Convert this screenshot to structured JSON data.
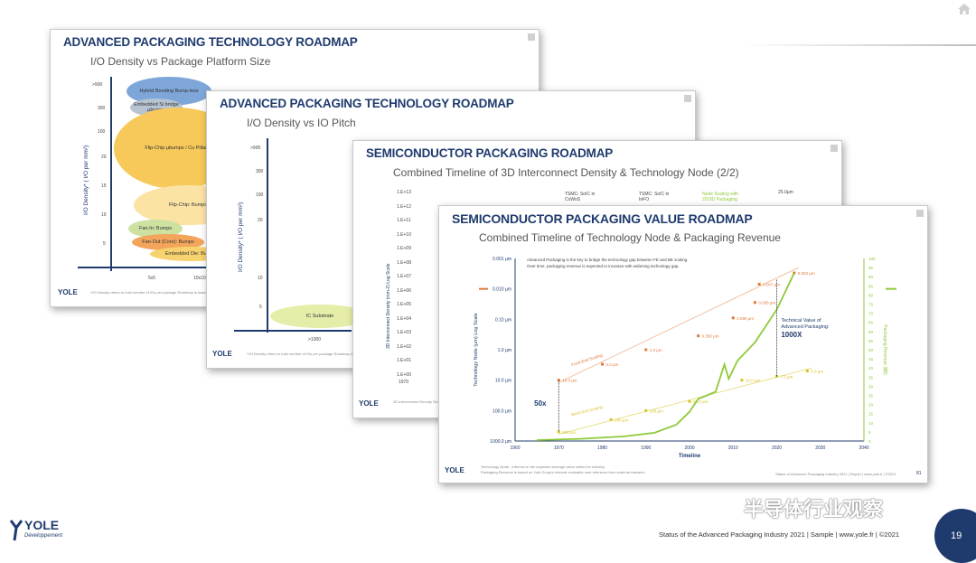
{
  "slide1": {
    "title": "ADVANCED PACKAGING TECHNOLOGY ROADMAP",
    "subtitle": "I/O Density vs Package Platform Size",
    "ylabel": "I/O Density* ( I/O per mm²)",
    "yticks": [
      ">900",
      "300",
      "100",
      "20",
      "15",
      "10",
      "5"
    ],
    "xticks": [
      "5x5",
      "10x10"
    ],
    "blobs": [
      "Hybrid Bonding Bump-less",
      "Embedded Si bridge µbumps",
      "Flip-Chip µbumps / Cu Pillars",
      "Flip-Chip: Bumps",
      "Fan-In: Bumps",
      "Fan-Out (Core): Bumps",
      "Embedded Die: Bumps"
    ],
    "footnote": "*I/O Density refers to total number of IOs per package Roadmap is based on industry average"
  },
  "slide2": {
    "title": "ADVANCED PACKAGING TECHNOLOGY ROADMAP",
    "subtitle": "I/O Density vs IO Pitch",
    "ylabel": "I/O Density* ( I/O per mm²)",
    "yticks": [
      ">900",
      "300",
      "100",
      "20",
      "10",
      "5"
    ],
    "xticks": [
      ">1000"
    ],
    "blobs": [
      "IC Substrate"
    ],
    "footnote": "*I/O Density refers to total number of IOs per package Roadmap is based on industry average"
  },
  "slide3": {
    "title": "SEMICONDUCTOR PACKAGING ROADMAP",
    "subtitle": "Combined Timeline of 3D Interconnect Density & Technology Node (2/2)",
    "ylabel": "3D Interconnect Density (mm-2) Log Scale",
    "yticks": [
      "1.E+13",
      "1.E+12",
      "1.E+11",
      "1.E+10",
      "1.E+09",
      "1.E+08",
      "1.E+07",
      "1.E+06",
      "1.E+05",
      "1.E+04",
      "1.E+03",
      "1.E+02",
      "1.E+01",
      "1.E+00"
    ],
    "x_first": "1970",
    "box1": "TSMC: SoIC in CoWoS",
    "box2": "TSMC: SoIC in InFO",
    "note": "Node Scaling with 2D/3D Packaging",
    "node": "25.0µm",
    "footnote": "3D Interconnect Density Technology Node Scaling"
  },
  "slide4": {
    "title": "SEMICONDUCTOR PACKAGING VALUE ROADMAP",
    "subtitle": "Combined Timeline of Technology Node & Packaging Revenue",
    "note_line1": "Advanced Packaging is the key to bridge the technology gap between FE and BE scaling.",
    "note_line2": "Over time, packaging revenue is expected to increase with widening technology gap.",
    "footnote_line1": "Technology Node - inferred on the expected average value within the industry",
    "footnote_line2": "Packaging Revenue is based on Yole Group's internal evaluation and reference from external research",
    "slide_ref": "Status of Advanced Packaging Industry 2021 | Report | www.yole.fr | ©2021",
    "slide_num": "81"
  },
  "chart_data": {
    "type": "line",
    "title": "Combined Timeline of Technology Node & Packaging Revenue",
    "xlabel": "Timeline",
    "ylabel": "Technology Node (µm) Log Scale",
    "y2label": "Packaging Revenue ($B)",
    "x_ticks": [
      "1960",
      "1970",
      "1980",
      "1990",
      "2000",
      "2010",
      "2020",
      "2030",
      "2040"
    ],
    "y_ticks": [
      "0.001 µm",
      "0.010 µm",
      "0.10 µm",
      "1.0 µm",
      "10.0 µm",
      "100.0 µm",
      "1000.0 µm"
    ],
    "y2_ticks": [
      "0",
      "5",
      "10",
      "15",
      "20",
      "25",
      "30",
      "35",
      "40",
      "45",
      "50",
      "55",
      "60",
      "65",
      "70",
      "75",
      "80",
      "85",
      "90",
      "95",
      "100"
    ],
    "xlim": [
      1960,
      2040
    ],
    "ylim_log": [
      0.001,
      1000
    ],
    "y2lim": [
      0,
      100
    ],
    "fe_scaling": {
      "name": "Front-End Scaling",
      "points": [
        [
          1970,
          10.0
        ],
        [
          1980,
          3.0
        ],
        [
          1990,
          1.0
        ],
        [
          2002,
          0.35
        ],
        [
          2010,
          0.09
        ],
        [
          2015,
          0.028
        ],
        [
          2016,
          0.007
        ],
        [
          2024,
          0.003
        ]
      ],
      "labels": [
        "10.0 µm",
        "3.0 µm",
        "1.0 µm",
        "0.350 µm",
        "0.090 µm",
        "0.028 µm",
        "0.007 µm",
        "0.003 µm"
      ]
    },
    "be_scaling": {
      "name": "Back-End Scaling",
      "points": [
        [
          1970,
          500
        ],
        [
          1982,
          200
        ],
        [
          1990,
          100
        ],
        [
          2000,
          50
        ],
        [
          2012,
          10
        ],
        [
          2020,
          7.5
        ],
        [
          2027,
          5
        ]
      ],
      "labels": [
        "500 µm",
        "200 µm",
        "100 µm",
        "50.0 µm",
        "10.0 µm",
        "7.5 µm",
        "5.0 µm"
      ]
    },
    "revenue": {
      "points": [
        [
          1965,
          0.5
        ],
        [
          1975,
          1.2
        ],
        [
          1985,
          2.5
        ],
        [
          1992,
          4.5
        ],
        [
          1997,
          9
        ],
        [
          2000,
          16
        ],
        [
          2002,
          23
        ],
        [
          2004,
          25
        ],
        [
          2006,
          27
        ],
        [
          2008,
          42
        ],
        [
          2009,
          34
        ],
        [
          2011,
          44
        ],
        [
          2015,
          54
        ],
        [
          2020,
          72
        ],
        [
          2024,
          92
        ]
      ]
    },
    "annotations": {
      "gap_small": "50x",
      "gap_big_line1": "Technical Value of",
      "gap_big_line2": "Advanced Packaging:",
      "gap_big_line3": "1000X"
    }
  },
  "footer": {
    "text": "Status of the Advanced Packaging Industry 2021 | Sample | www.yole.fr | ©2021",
    "page": "19",
    "watermark": "半导体行业观察",
    "logo_line1": "YOLE",
    "logo_line2": "Développement"
  },
  "colors": {
    "navy": "#1f3b6e",
    "fe_orange": "#e07b39",
    "be_yellow": "#d6c62a",
    "revenue_green": "#8fc93a"
  }
}
